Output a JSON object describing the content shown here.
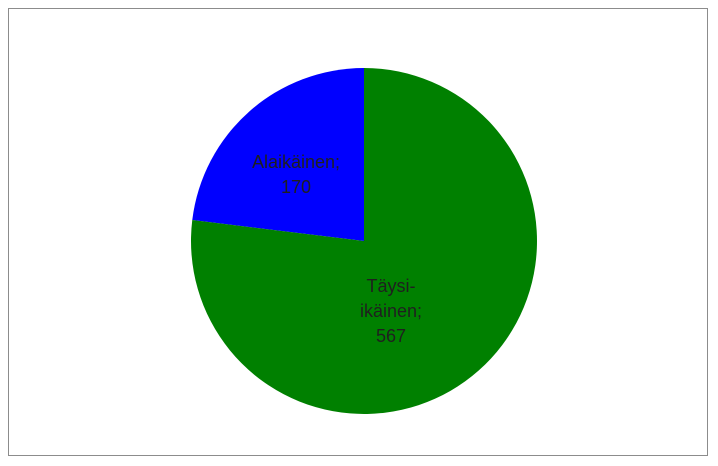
{
  "chart_data": {
    "type": "pie",
    "title": "",
    "slices": [
      {
        "label_lines": [
          "Alaikäinen;",
          "170"
        ],
        "category": "Alaikäinen",
        "value": 170,
        "color": "#0000FF"
      },
      {
        "label_lines": [
          "Täysi-",
          "ikäinen;",
          "567"
        ],
        "category": "Täysi-ikäinen",
        "value": 567,
        "color": "#008000"
      }
    ],
    "legend": "none",
    "start": "12 o'clock",
    "direction": "counterclockwise"
  }
}
